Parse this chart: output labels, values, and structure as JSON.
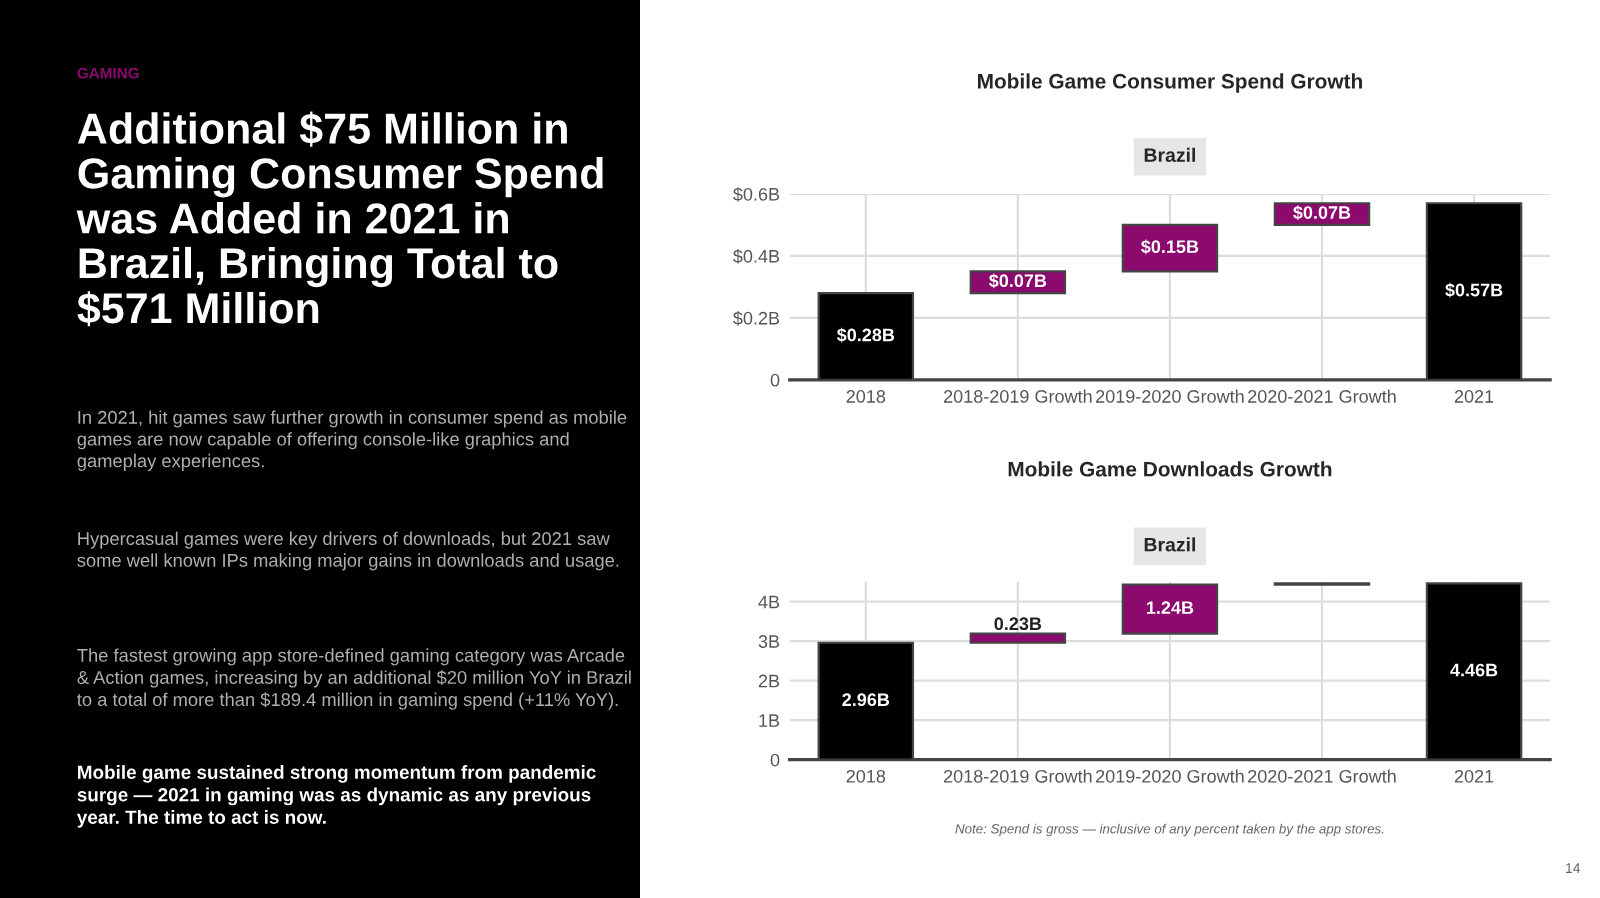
{
  "chart_data": [
    {
      "type": "other",
      "title": "Additional $75 Million in Gaming Consumer Spend was Added in 2021 in Brazil, Bringing Total to $571 Million",
      "annotations": [
        "GAMING",
        "In 2021, hit games saw further growth in consumer spend as mobile games are now capable of offering console-like graphics and gameplay experiences.",
        "Hypercasual games were key drivers of downloads, but 2021 saw some well known IPs making major gains in downloads and usage.",
        "The fastest growing app store-defined gaming category was Arcade & Action games, increasing by an additional $20 million YoY in Brazil to a total of more than $189.4 million in gaming spend (+11% YoY).",
        "Mobile game sustained strong momentum from pandemic surge — 2021 in gaming was as dynamic as any previous year. The time to act is now."
      ]
    },
    {
      "type": "bar",
      "title": "Mobile Game Consumer Spend Growth",
      "annotations": [
        "Brazil"
      ],
      "categories": [
        "2018",
        "2018-2019 Growth",
        "2019-2020 Growth",
        "2020-2021 Growth",
        "2021"
      ],
      "values": [
        0.28,
        0.07,
        0.15,
        0.07,
        0.57
      ],
      "base": [
        0,
        0.28,
        0.35,
        0.5,
        0
      ],
      "colors": [
        "#000000",
        "#8c0a6e",
        "#8c0a6e",
        "#8c0a6e",
        "#000000"
      ],
      "value_labels": [
        "$0.28B",
        "$0.07B",
        "$0.15B",
        "$0.07B",
        "$0.57B"
      ],
      "ylim": [
        0,
        0.6
      ],
      "yticks": [
        {
          "value": 0,
          "label": "0"
        },
        {
          "value": 0.2,
          "label": "$0.2B"
        },
        {
          "value": 0.4,
          "label": "$0.4B"
        },
        {
          "value": 0.6,
          "label": "$0.6B"
        }
      ],
      "grid": true
    },
    {
      "type": "bar",
      "title": "Mobile Game Downloads Growth",
      "annotations": [
        "Brazil",
        "Note: Spend is gross — inclusive of any percent taken by the app stores.",
        "14"
      ],
      "categories": [
        "2018",
        "2018-2019 Growth",
        "2019-2020 Growth",
        "2020-2021 Growth",
        "2021"
      ],
      "values": [
        2.96,
        0.23,
        1.24,
        0.03,
        4.46
      ],
      "base": [
        0,
        2.96,
        3.19,
        4.43,
        0
      ],
      "colors": [
        "#000000",
        "#8c0a6e",
        "#8c0a6e",
        "#8c0a6e",
        "#000000"
      ],
      "value_labels": [
        "2.96B",
        "0.23B",
        "1.24B",
        null,
        "4.46B"
      ],
      "ylim": [
        0,
        4.5
      ],
      "yticks": [
        {
          "value": 0,
          "label": "0"
        },
        {
          "value": 1,
          "label": "1B"
        },
        {
          "value": 2,
          "label": "2B"
        },
        {
          "value": 3,
          "label": "3B"
        },
        {
          "value": 4,
          "label": "4B"
        }
      ],
      "grid": true
    }
  ]
}
